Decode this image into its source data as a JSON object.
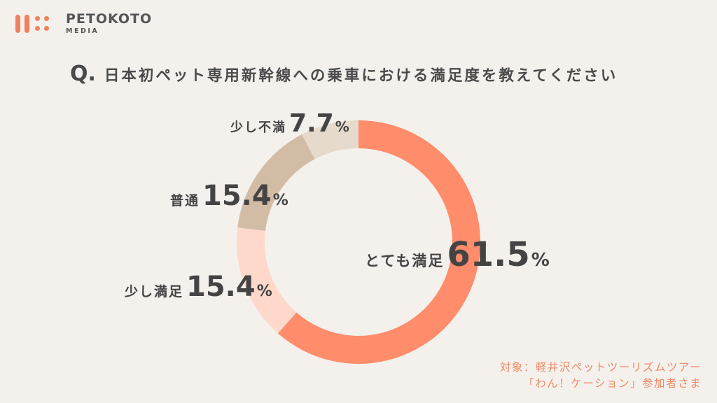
{
  "brand": {
    "name": "PETOKOTO",
    "sub": "MEDIA",
    "color": "#f1815e"
  },
  "question": {
    "mark": "Q.",
    "text": "日本初ペット専用新幹線への乗車における満足度を教えてください"
  },
  "chart_data": {
    "type": "pie",
    "donut": true,
    "title": "日本初ペット専用新幹線への乗車における満足度を教えてください",
    "unit": "%",
    "categories": [
      "とても満足",
      "少し満足",
      "普通",
      "少し不満"
    ],
    "values": [
      61.5,
      15.4,
      15.4,
      7.7
    ],
    "colors": [
      "#ff8c6b",
      "#ffd8cc",
      "#d3bca6",
      "#e6dacd"
    ],
    "start_angle_deg": 0,
    "direction": "clockwise"
  },
  "labels": [
    {
      "name": "とても満足",
      "value": "61.5",
      "unit": "%"
    },
    {
      "name": "少し満足",
      "value": "15.4",
      "unit": "%"
    },
    {
      "name": "普通",
      "value": "15.4",
      "unit": "%"
    },
    {
      "name": "少し不満",
      "value": "7.7",
      "unit": "%"
    }
  ],
  "source": {
    "line1": "対象：軽井沢ペットツーリズムツアー",
    "line2": "「わん！ケーション」参加者さま"
  }
}
